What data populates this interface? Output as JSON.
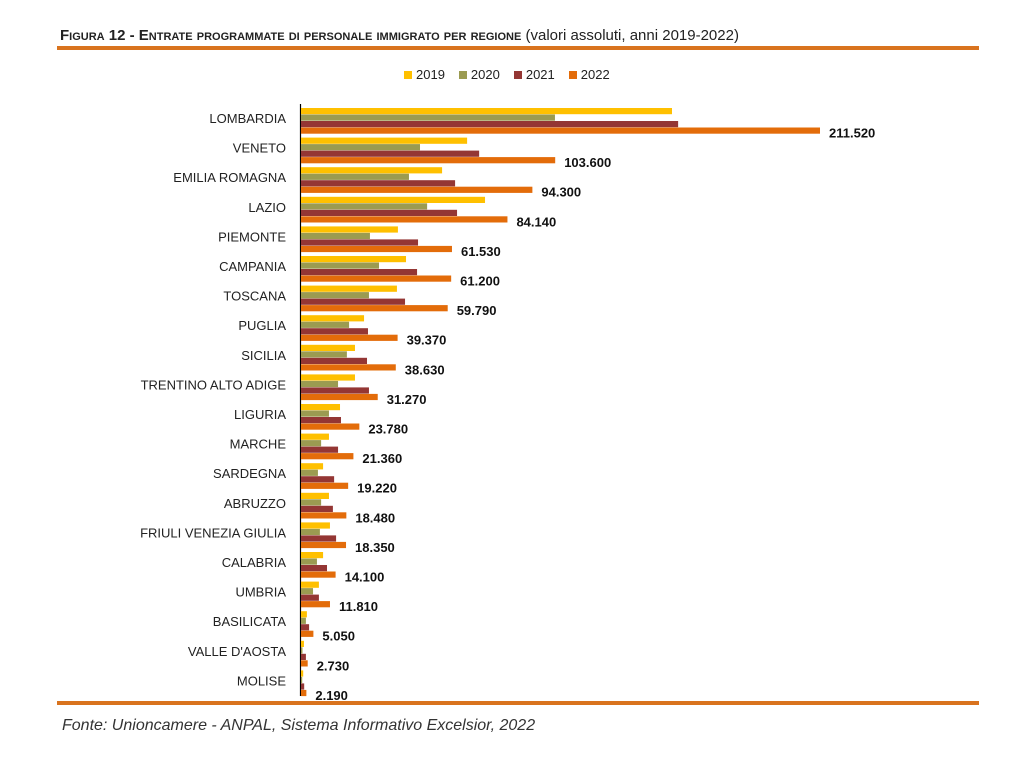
{
  "title": {
    "main": "Figura 12 - Entrate programmate di personale immigrato per regione",
    "sub": "(valori assoluti, anni 2019-2022)"
  },
  "source": "Fonte: Unioncamere - ANPAL, Sistema Informativo Excelsior, 2022",
  "chart_data": {
    "type": "bar",
    "orientation": "horizontal",
    "title": "Entrate programmate di personale immigrato per regione (valori assoluti, anni 2019-2022)",
    "xlabel": "",
    "ylabel": "",
    "xlim": [
      0,
      230000
    ],
    "grid": false,
    "legend_position": "top-center",
    "categories": [
      "LOMBARDIA",
      "VENETO",
      "EMILIA ROMAGNA",
      "LAZIO",
      "PIEMONTE",
      "CAMPANIA",
      "TOSCANA",
      "PUGLIA",
      "SICILIA",
      "TRENTINO ALTO ADIGE",
      "LIGURIA",
      "MARCHE",
      "SARDEGNA",
      "ABRUZZO",
      "FRIULI VENEZIA GIULIA",
      "CALABRIA",
      "UMBRIA",
      "BASILICATA",
      "VALLE D'AOSTA",
      "MOLISE"
    ],
    "series": [
      {
        "name": "2019",
        "color": "#FFC000",
        "values": [
          151200,
          67700,
          57500,
          75000,
          39500,
          42800,
          39100,
          25700,
          22000,
          22000,
          15900,
          11400,
          9000,
          11400,
          11800,
          9000,
          7300,
          2400,
          1200,
          900
        ]
      },
      {
        "name": "2020",
        "color": "#9B9B51",
        "values": [
          103500,
          48500,
          44000,
          51400,
          28100,
          31800,
          27700,
          19600,
          18700,
          15100,
          11400,
          8200,
          6900,
          8200,
          7700,
          6500,
          4900,
          2000,
          600,
          500
        ]
      },
      {
        "name": "2021",
        "color": "#943634",
        "values": [
          153700,
          72600,
          62800,
          63600,
          47700,
          47300,
          42400,
          27300,
          26900,
          27700,
          16300,
          15100,
          13500,
          13000,
          14300,
          10600,
          7300,
          3300,
          2000,
          1300
        ]
      },
      {
        "name": "2022",
        "color": "#E36C0A",
        "values": [
          211520,
          103600,
          94300,
          84140,
          61530,
          61200,
          59790,
          39370,
          38630,
          31270,
          23780,
          21360,
          19220,
          18480,
          18350,
          14100,
          11810,
          5050,
          2730,
          2190
        ]
      }
    ],
    "data_labels": {
      "series": "2022",
      "texts": [
        "211.520",
        "103.600",
        "94.300",
        "84.140",
        "61.530",
        "61.200",
        "59.790",
        "39.370",
        "38.630",
        "31.270",
        "23.780",
        "21.360",
        "19.220",
        "18.480",
        "18.350",
        "14.100",
        "11.810",
        "5.050",
        "2.730",
        "2.190"
      ]
    }
  }
}
